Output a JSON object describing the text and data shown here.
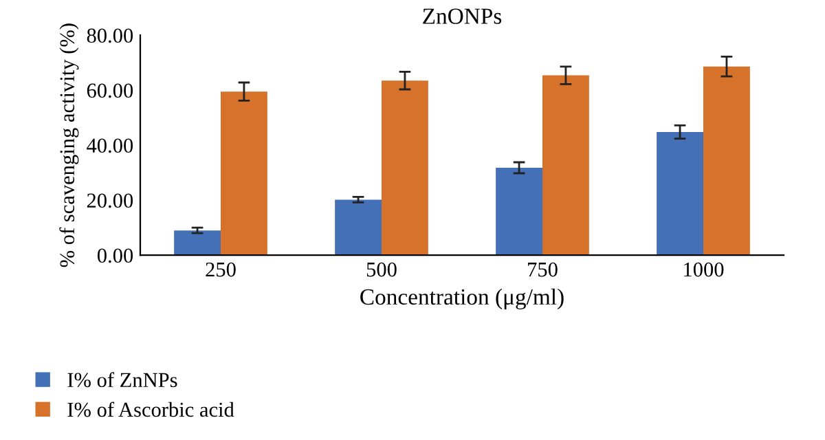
{
  "chart_data": {
    "type": "bar",
    "title": "ZnONPs",
    "xlabel": "Concentration (μg/ml)",
    "ylabel": "% of scavenging activity (%)",
    "categories": [
      "250",
      "500",
      "750",
      "1000"
    ],
    "series": [
      {
        "name": "I% of ZnNPs",
        "color": "#4470b8",
        "values": [
          9.0,
          20.2,
          31.8,
          44.8
        ],
        "errors": [
          1.0,
          1.0,
          2.0,
          2.4
        ]
      },
      {
        "name": "I% of Ascorbic acid",
        "color": "#d6722a",
        "values": [
          59.5,
          63.5,
          65.4,
          68.6
        ],
        "errors": [
          3.3,
          3.2,
          3.2,
          3.6
        ]
      }
    ],
    "ylim": [
      0,
      80
    ],
    "yticks": [
      {
        "value": 0,
        "label": "0.00"
      },
      {
        "value": 20,
        "label": "20.00"
      },
      {
        "value": 40,
        "label": "40.00"
      },
      {
        "value": 60,
        "label": "60.00"
      },
      {
        "value": 80,
        "label": "80.00"
      }
    ],
    "grid": false,
    "legend": "bottom left"
  }
}
